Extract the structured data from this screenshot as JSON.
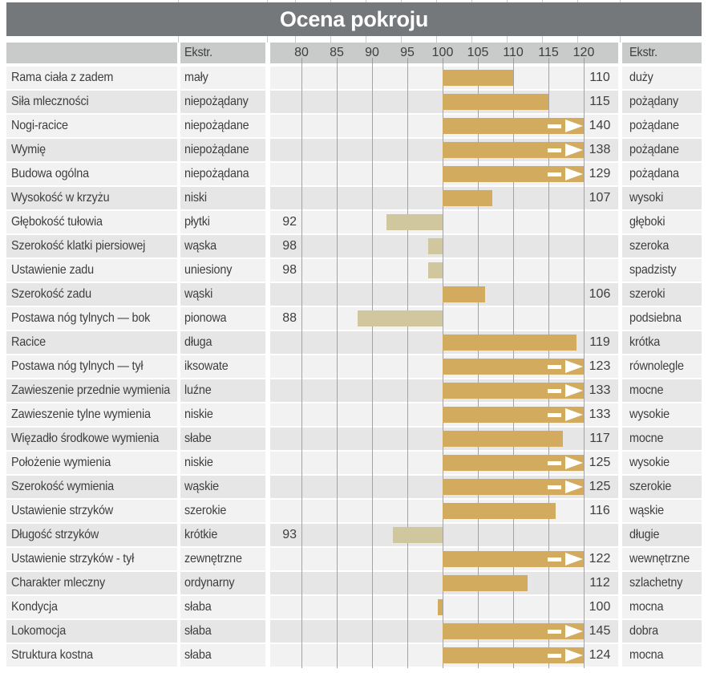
{
  "title": "Ocena pokroju",
  "header": {
    "left_extreme_label": "Ekstr.",
    "right_extreme_label": "Ekstr."
  },
  "colors": {
    "title_bar_bg": "#75787b",
    "header_bg": "#c9caca",
    "row_light": "#f2f2f3",
    "row_dark": "#e6e6e7",
    "gridline": "#a3a3a3",
    "bar_above_baseline": "#d3ab5f",
    "bar_below_baseline": "#d1c79e",
    "arrow_marker": "#ffffff"
  },
  "chart_data": {
    "type": "bar",
    "orientation": "horizontal",
    "title": "Ocena pokroju",
    "baseline": 100,
    "x_ticks": [
      80,
      85,
      90,
      95,
      100,
      105,
      110,
      115,
      120
    ],
    "xlim": [
      75.5,
      125
    ],
    "grid": true,
    "arrow_beyond": 120,
    "legend_position": "none",
    "rows": [
      {
        "trait": "Rama ciała z zadem",
        "left_extreme": "mały",
        "value": 110,
        "right_extreme": "duży"
      },
      {
        "trait": "Siła mleczności",
        "left_extreme": "niepożądany",
        "value": 115,
        "right_extreme": "pożądany"
      },
      {
        "trait": "Nogi-racice",
        "left_extreme": "niepożądane",
        "value": 140,
        "right_extreme": "pożądane"
      },
      {
        "trait": "Wymię",
        "left_extreme": "niepożądane",
        "value": 138,
        "right_extreme": "pożądane"
      },
      {
        "trait": "Budowa ogólna",
        "left_extreme": "niepożądana",
        "value": 129,
        "right_extreme": "pożądana"
      },
      {
        "trait": "Wysokość w krzyżu",
        "left_extreme": "niski",
        "value": 107,
        "right_extreme": "wysoki"
      },
      {
        "trait": "Głębokość tułowia",
        "left_extreme": "płytki",
        "value": 92,
        "right_extreme": "głęboki"
      },
      {
        "trait": "Szerokość klatki piersiowej",
        "left_extreme": "wąska",
        "value": 98,
        "right_extreme": "szeroka"
      },
      {
        "trait": "Ustawienie zadu",
        "left_extreme": "uniesiony",
        "value": 98,
        "right_extreme": "spadzisty"
      },
      {
        "trait": "Szerokość zadu",
        "left_extreme": "wąski",
        "value": 106,
        "right_extreme": "szeroki"
      },
      {
        "trait": "Postawa nóg tylnych —  bok",
        "left_extreme": "pionowa",
        "value": 88,
        "right_extreme": "podsiebna"
      },
      {
        "trait": "Racice",
        "left_extreme": "długa",
        "value": 119,
        "right_extreme": "krótka"
      },
      {
        "trait": "Postawa nóg tylnych —  tył",
        "left_extreme": "iksowate",
        "value": 123,
        "right_extreme": "równolegle"
      },
      {
        "trait": "Zawieszenie przednie wymienia",
        "left_extreme": "luźne",
        "value": 133,
        "right_extreme": "mocne"
      },
      {
        "trait": "Zawieszenie tylne wymienia",
        "left_extreme": "niskie",
        "value": 133,
        "right_extreme": "wysokie"
      },
      {
        "trait": "Więzadło środkowe wymienia",
        "left_extreme": "słabe",
        "value": 117,
        "right_extreme": "mocne"
      },
      {
        "trait": "Położenie wymienia",
        "left_extreme": "niskie",
        "value": 125,
        "right_extreme": "wysokie"
      },
      {
        "trait": "Szerokość wymienia",
        "left_extreme": "wąskie",
        "value": 125,
        "right_extreme": "szerokie"
      },
      {
        "trait": "Ustawienie strzyków",
        "left_extreme": "szerokie",
        "value": 116,
        "right_extreme": "wąskie"
      },
      {
        "trait": "Długość strzyków",
        "left_extreme": "krótkie",
        "value": 93,
        "right_extreme": "długie"
      },
      {
        "trait": "Ustawienie strzyków - tył",
        "left_extreme": "zewnętrzne",
        "value": 122,
        "right_extreme": "wewnętrzne"
      },
      {
        "trait": "Charakter mleczny",
        "left_extreme": "ordynarny",
        "value": 112,
        "right_extreme": "szlachetny"
      },
      {
        "trait": "Kondycja",
        "left_extreme": "słaba",
        "value": 100,
        "right_extreme": "mocna"
      },
      {
        "trait": "Lokomocja",
        "left_extreme": "słaba",
        "value": 145,
        "right_extreme": "dobra"
      },
      {
        "trait": "Struktura kostna",
        "left_extreme": "słaba",
        "value": 124,
        "right_extreme": "mocna"
      }
    ]
  }
}
